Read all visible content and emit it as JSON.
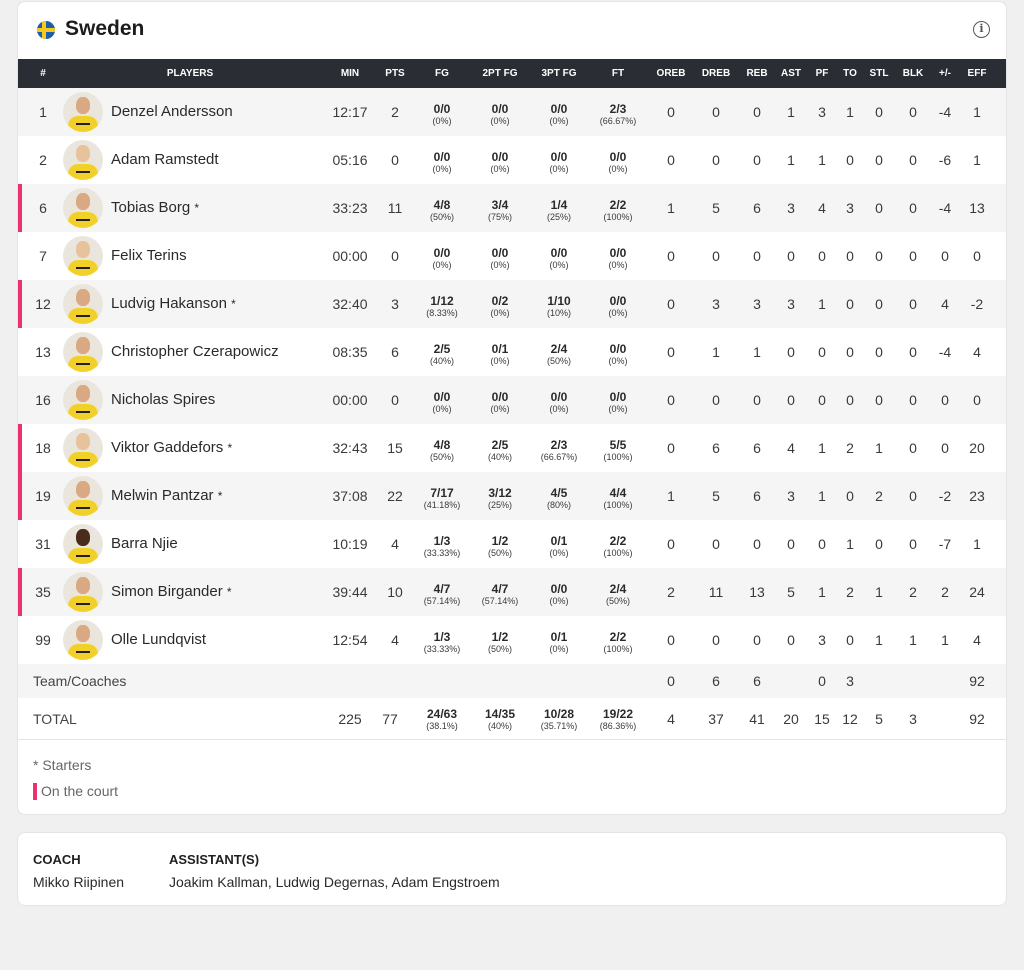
{
  "team": {
    "name": "Sweden",
    "flag_colors": {
      "blue": "#1c5fa8",
      "yellow": "#f7c81f"
    },
    "info_icon": "info-icon"
  },
  "columns": [
    "#",
    "PLAYERS",
    "MIN",
    "PTS",
    "FG",
    "2PT FG",
    "3PT FG",
    "FT",
    "OREB",
    "DREB",
    "REB",
    "AST",
    "PF",
    "TO",
    "STL",
    "BLK",
    "+/-",
    "EFF"
  ],
  "players": [
    {
      "num": "1",
      "name": "Denzel Andersson",
      "starter": "",
      "min": "12:17",
      "pts": "2",
      "fg_m": "0/0",
      "fg_p": "(0%)",
      "fg2_m": "0/0",
      "fg2_p": "(0%)",
      "fg3_m": "0/0",
      "fg3_p": "(0%)",
      "ft_m": "2/3",
      "ft_p": "(66.67%)",
      "oreb": "0",
      "dreb": "0",
      "reb": "0",
      "ast": "1",
      "pf": "3",
      "to": "1",
      "stl": "0",
      "blk": "0",
      "pm": "-4",
      "eff": "1"
    },
    {
      "num": "2",
      "name": "Adam Ramstedt",
      "starter": "",
      "min": "05:16",
      "pts": "0",
      "fg_m": "0/0",
      "fg_p": "(0%)",
      "fg2_m": "0/0",
      "fg2_p": "(0%)",
      "fg3_m": "0/0",
      "fg3_p": "(0%)",
      "ft_m": "0/0",
      "ft_p": "(0%)",
      "oreb": "0",
      "dreb": "0",
      "reb": "0",
      "ast": "1",
      "pf": "1",
      "to": "0",
      "stl": "0",
      "blk": "0",
      "pm": "-6",
      "eff": "1"
    },
    {
      "num": "6",
      "name": "Tobias Borg",
      "starter": "*",
      "min": "33:23",
      "pts": "11",
      "fg_m": "4/8",
      "fg_p": "(50%)",
      "fg2_m": "3/4",
      "fg2_p": "(75%)",
      "fg3_m": "1/4",
      "fg3_p": "(25%)",
      "ft_m": "2/2",
      "ft_p": "(100%)",
      "oreb": "1",
      "dreb": "5",
      "reb": "6",
      "ast": "3",
      "pf": "4",
      "to": "3",
      "stl": "0",
      "blk": "0",
      "pm": "-4",
      "eff": "13"
    },
    {
      "num": "7",
      "name": "Felix Terins",
      "starter": "",
      "min": "00:00",
      "pts": "0",
      "fg_m": "0/0",
      "fg_p": "(0%)",
      "fg2_m": "0/0",
      "fg2_p": "(0%)",
      "fg3_m": "0/0",
      "fg3_p": "(0%)",
      "ft_m": "0/0",
      "ft_p": "(0%)",
      "oreb": "0",
      "dreb": "0",
      "reb": "0",
      "ast": "0",
      "pf": "0",
      "to": "0",
      "stl": "0",
      "blk": "0",
      "pm": "0",
      "eff": "0"
    },
    {
      "num": "12",
      "name": "Ludvig Hakanson",
      "starter": "*",
      "min": "32:40",
      "pts": "3",
      "fg_m": "1/12",
      "fg_p": "(8.33%)",
      "fg2_m": "0/2",
      "fg2_p": "(0%)",
      "fg3_m": "1/10",
      "fg3_p": "(10%)",
      "ft_m": "0/0",
      "ft_p": "(0%)",
      "oreb": "0",
      "dreb": "3",
      "reb": "3",
      "ast": "3",
      "pf": "1",
      "to": "0",
      "stl": "0",
      "blk": "0",
      "pm": "4",
      "eff": "-2"
    },
    {
      "num": "13",
      "name": "Christopher Czerapowicz",
      "starter": "",
      "min": "08:35",
      "pts": "6",
      "fg_m": "2/5",
      "fg_p": "(40%)",
      "fg2_m": "0/1",
      "fg2_p": "(0%)",
      "fg3_m": "2/4",
      "fg3_p": "(50%)",
      "ft_m": "0/0",
      "ft_p": "(0%)",
      "oreb": "0",
      "dreb": "1",
      "reb": "1",
      "ast": "0",
      "pf": "0",
      "to": "0",
      "stl": "0",
      "blk": "0",
      "pm": "-4",
      "eff": "4"
    },
    {
      "num": "16",
      "name": "Nicholas Spires",
      "starter": "",
      "min": "00:00",
      "pts": "0",
      "fg_m": "0/0",
      "fg_p": "(0%)",
      "fg2_m": "0/0",
      "fg2_p": "(0%)",
      "fg3_m": "0/0",
      "fg3_p": "(0%)",
      "ft_m": "0/0",
      "ft_p": "(0%)",
      "oreb": "0",
      "dreb": "0",
      "reb": "0",
      "ast": "0",
      "pf": "0",
      "to": "0",
      "stl": "0",
      "blk": "0",
      "pm": "0",
      "eff": "0"
    },
    {
      "num": "18",
      "name": "Viktor Gaddefors",
      "starter": "*",
      "min": "32:43",
      "pts": "15",
      "fg_m": "4/8",
      "fg_p": "(50%)",
      "fg2_m": "2/5",
      "fg2_p": "(40%)",
      "fg3_m": "2/3",
      "fg3_p": "(66.67%)",
      "ft_m": "5/5",
      "ft_p": "(100%)",
      "oreb": "0",
      "dreb": "6",
      "reb": "6",
      "ast": "4",
      "pf": "1",
      "to": "2",
      "stl": "1",
      "blk": "0",
      "pm": "0",
      "eff": "20"
    },
    {
      "num": "19",
      "name": "Melwin Pantzar",
      "starter": "*",
      "min": "37:08",
      "pts": "22",
      "fg_m": "7/17",
      "fg_p": "(41.18%)",
      "fg2_m": "3/12",
      "fg2_p": "(25%)",
      "fg3_m": "4/5",
      "fg3_p": "(80%)",
      "ft_m": "4/4",
      "ft_p": "(100%)",
      "oreb": "1",
      "dreb": "5",
      "reb": "6",
      "ast": "3",
      "pf": "1",
      "to": "0",
      "stl": "2",
      "blk": "0",
      "pm": "-2",
      "eff": "23"
    },
    {
      "num": "31",
      "name": "Barra Njie",
      "starter": "",
      "min": "10:19",
      "pts": "4",
      "fg_m": "1/3",
      "fg_p": "(33.33%)",
      "fg2_m": "1/2",
      "fg2_p": "(50%)",
      "fg3_m": "0/1",
      "fg3_p": "(0%)",
      "ft_m": "2/2",
      "ft_p": "(100%)",
      "oreb": "0",
      "dreb": "0",
      "reb": "0",
      "ast": "0",
      "pf": "0",
      "to": "1",
      "stl": "0",
      "blk": "0",
      "pm": "-7",
      "eff": "1"
    },
    {
      "num": "35",
      "name": "Simon Birgander",
      "starter": "*",
      "min": "39:44",
      "pts": "10",
      "fg_m": "4/7",
      "fg_p": "(57.14%)",
      "fg2_m": "4/7",
      "fg2_p": "(57.14%)",
      "fg3_m": "0/0",
      "fg3_p": "(0%)",
      "ft_m": "2/4",
      "ft_p": "(50%)",
      "oreb": "2",
      "dreb": "11",
      "reb": "13",
      "ast": "5",
      "pf": "1",
      "to": "2",
      "stl": "1",
      "blk": "2",
      "pm": "2",
      "eff": "24"
    },
    {
      "num": "99",
      "name": "Olle Lundqvist",
      "starter": "",
      "min": "12:54",
      "pts": "4",
      "fg_m": "1/3",
      "fg_p": "(33.33%)",
      "fg2_m": "1/2",
      "fg2_p": "(50%)",
      "fg3_m": "0/1",
      "fg3_p": "(0%)",
      "ft_m": "2/2",
      "ft_p": "(100%)",
      "oreb": "0",
      "dreb": "0",
      "reb": "0",
      "ast": "0",
      "pf": "3",
      "to": "0",
      "stl": "1",
      "blk": "1",
      "pm": "1",
      "eff": "4"
    }
  ],
  "team_coaches": {
    "label": "Team/Coaches",
    "oreb": "0",
    "dreb": "6",
    "reb": "6",
    "pf": "0",
    "to": "3",
    "eff": "92"
  },
  "total": {
    "label": "TOTAL",
    "min": "225",
    "pts": "77",
    "fg_m": "24/63",
    "fg_p": "(38.1%)",
    "fg2_m": "14/35",
    "fg2_p": "(40%)",
    "fg3_m": "10/28",
    "fg3_p": "(35.71%)",
    "ft_m": "19/22",
    "ft_p": "(86.36%)",
    "oreb": "4",
    "dreb": "37",
    "reb": "41",
    "ast": "20",
    "pf": "15",
    "to": "12",
    "stl": "5",
    "blk": "3",
    "eff": "92"
  },
  "legend": {
    "starters": "* Starters",
    "on_court": "On the court",
    "on_court_color": "#e8336f"
  },
  "coaches": {
    "coach_label": "COACH",
    "coach_name": "Mikko Riipinen",
    "assistants_label": "ASSISTANT(S)",
    "assistants_names": "Joakim Kallman, Ludwig Degernas, Adam Engstroem"
  }
}
